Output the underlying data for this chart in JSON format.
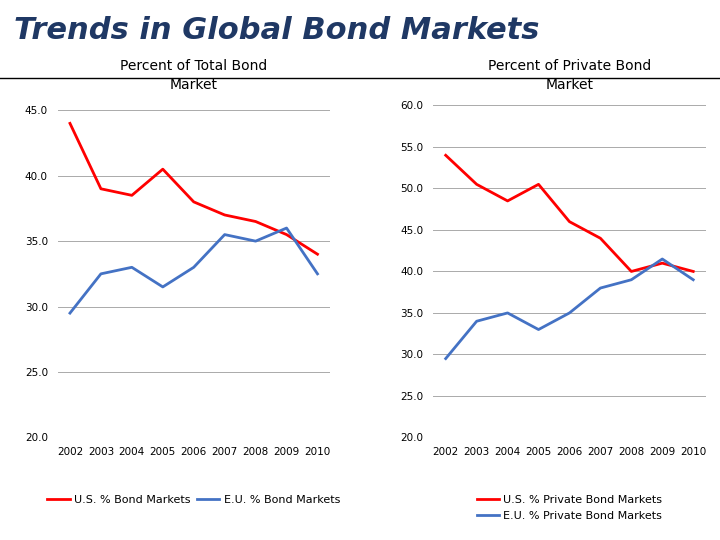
{
  "title": "Trends in Global Bond Markets",
  "title_fontsize": 22,
  "title_color": "#1F3864",
  "years": [
    2002,
    2003,
    2004,
    2005,
    2006,
    2007,
    2008,
    2009,
    2010
  ],
  "left_title": "Percent of Total Bond\nMarket",
  "right_title": "Percent of Private Bond\nMarket",
  "left_us": [
    44.0,
    39.0,
    38.5,
    40.5,
    38.0,
    37.0,
    36.5,
    35.5,
    34.0
  ],
  "left_eu": [
    29.5,
    32.5,
    33.0,
    31.5,
    33.0,
    35.5,
    35.0,
    36.0,
    32.5
  ],
  "right_us": [
    54.0,
    50.5,
    48.5,
    50.5,
    46.0,
    44.0,
    40.0,
    41.0,
    40.0
  ],
  "right_eu": [
    29.5,
    34.0,
    35.0,
    33.0,
    35.0,
    38.0,
    39.0,
    41.5,
    39.0
  ],
  "left_ylim": [
    20.0,
    46.0
  ],
  "left_yticks": [
    20.0,
    25.0,
    30.0,
    35.0,
    40.0,
    45.0
  ],
  "right_ylim": [
    20.0,
    61.0
  ],
  "right_yticks": [
    20.0,
    25.0,
    30.0,
    35.0,
    40.0,
    45.0,
    50.0,
    55.0,
    60.0
  ],
  "us_color": "#FF0000",
  "eu_color": "#4472C4",
  "line_width": 2.0,
  "left_legend_us": "U.S. % Bond Markets",
  "left_legend_eu": "E.U. % Bond Markets",
  "right_legend_us": "U.S. % Private Bond Markets",
  "right_legend_eu": "E.U. % Private Bond Markets",
  "background_color": "#FFFFFF",
  "subtitle_fontsize": 10,
  "tick_fontsize": 7.5,
  "legend_fontsize": 8,
  "grid_color": "#AAAAAA",
  "grid_lw": 0.7
}
